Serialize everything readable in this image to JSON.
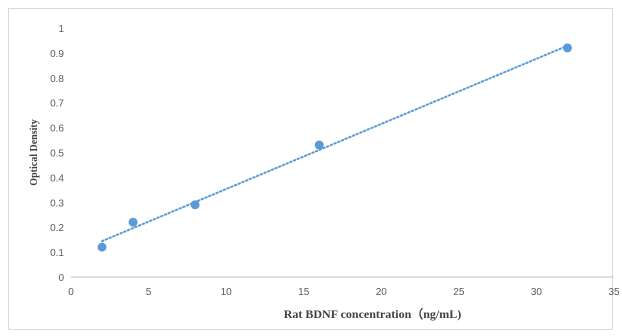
{
  "chart_data": {
    "type": "scatter",
    "title": "",
    "xlabel": "Rat BDNF concentration（ng/mL)",
    "ylabel": "Optical Density",
    "xlim": [
      0,
      35
    ],
    "ylim": [
      0,
      1
    ],
    "x_ticks": [
      "0",
      "5",
      "10",
      "15",
      "20",
      "25",
      "30",
      "35"
    ],
    "y_ticks": [
      "0",
      "0.1",
      "0.2",
      "0.3",
      "0.4",
      "0.5",
      "0.6",
      "0.7",
      "0.8",
      "0.9",
      "1"
    ],
    "grid": false,
    "legend": "none",
    "series": [
      {
        "x": [
          2,
          4,
          8,
          16,
          32
        ],
        "y": [
          0.12,
          0.22,
          0.29,
          0.53,
          0.92
        ],
        "color": "#5b9bd5"
      }
    ],
    "trendline": {
      "kind": "linear",
      "style": "dotted",
      "color": "#5b9bd5"
    }
  }
}
